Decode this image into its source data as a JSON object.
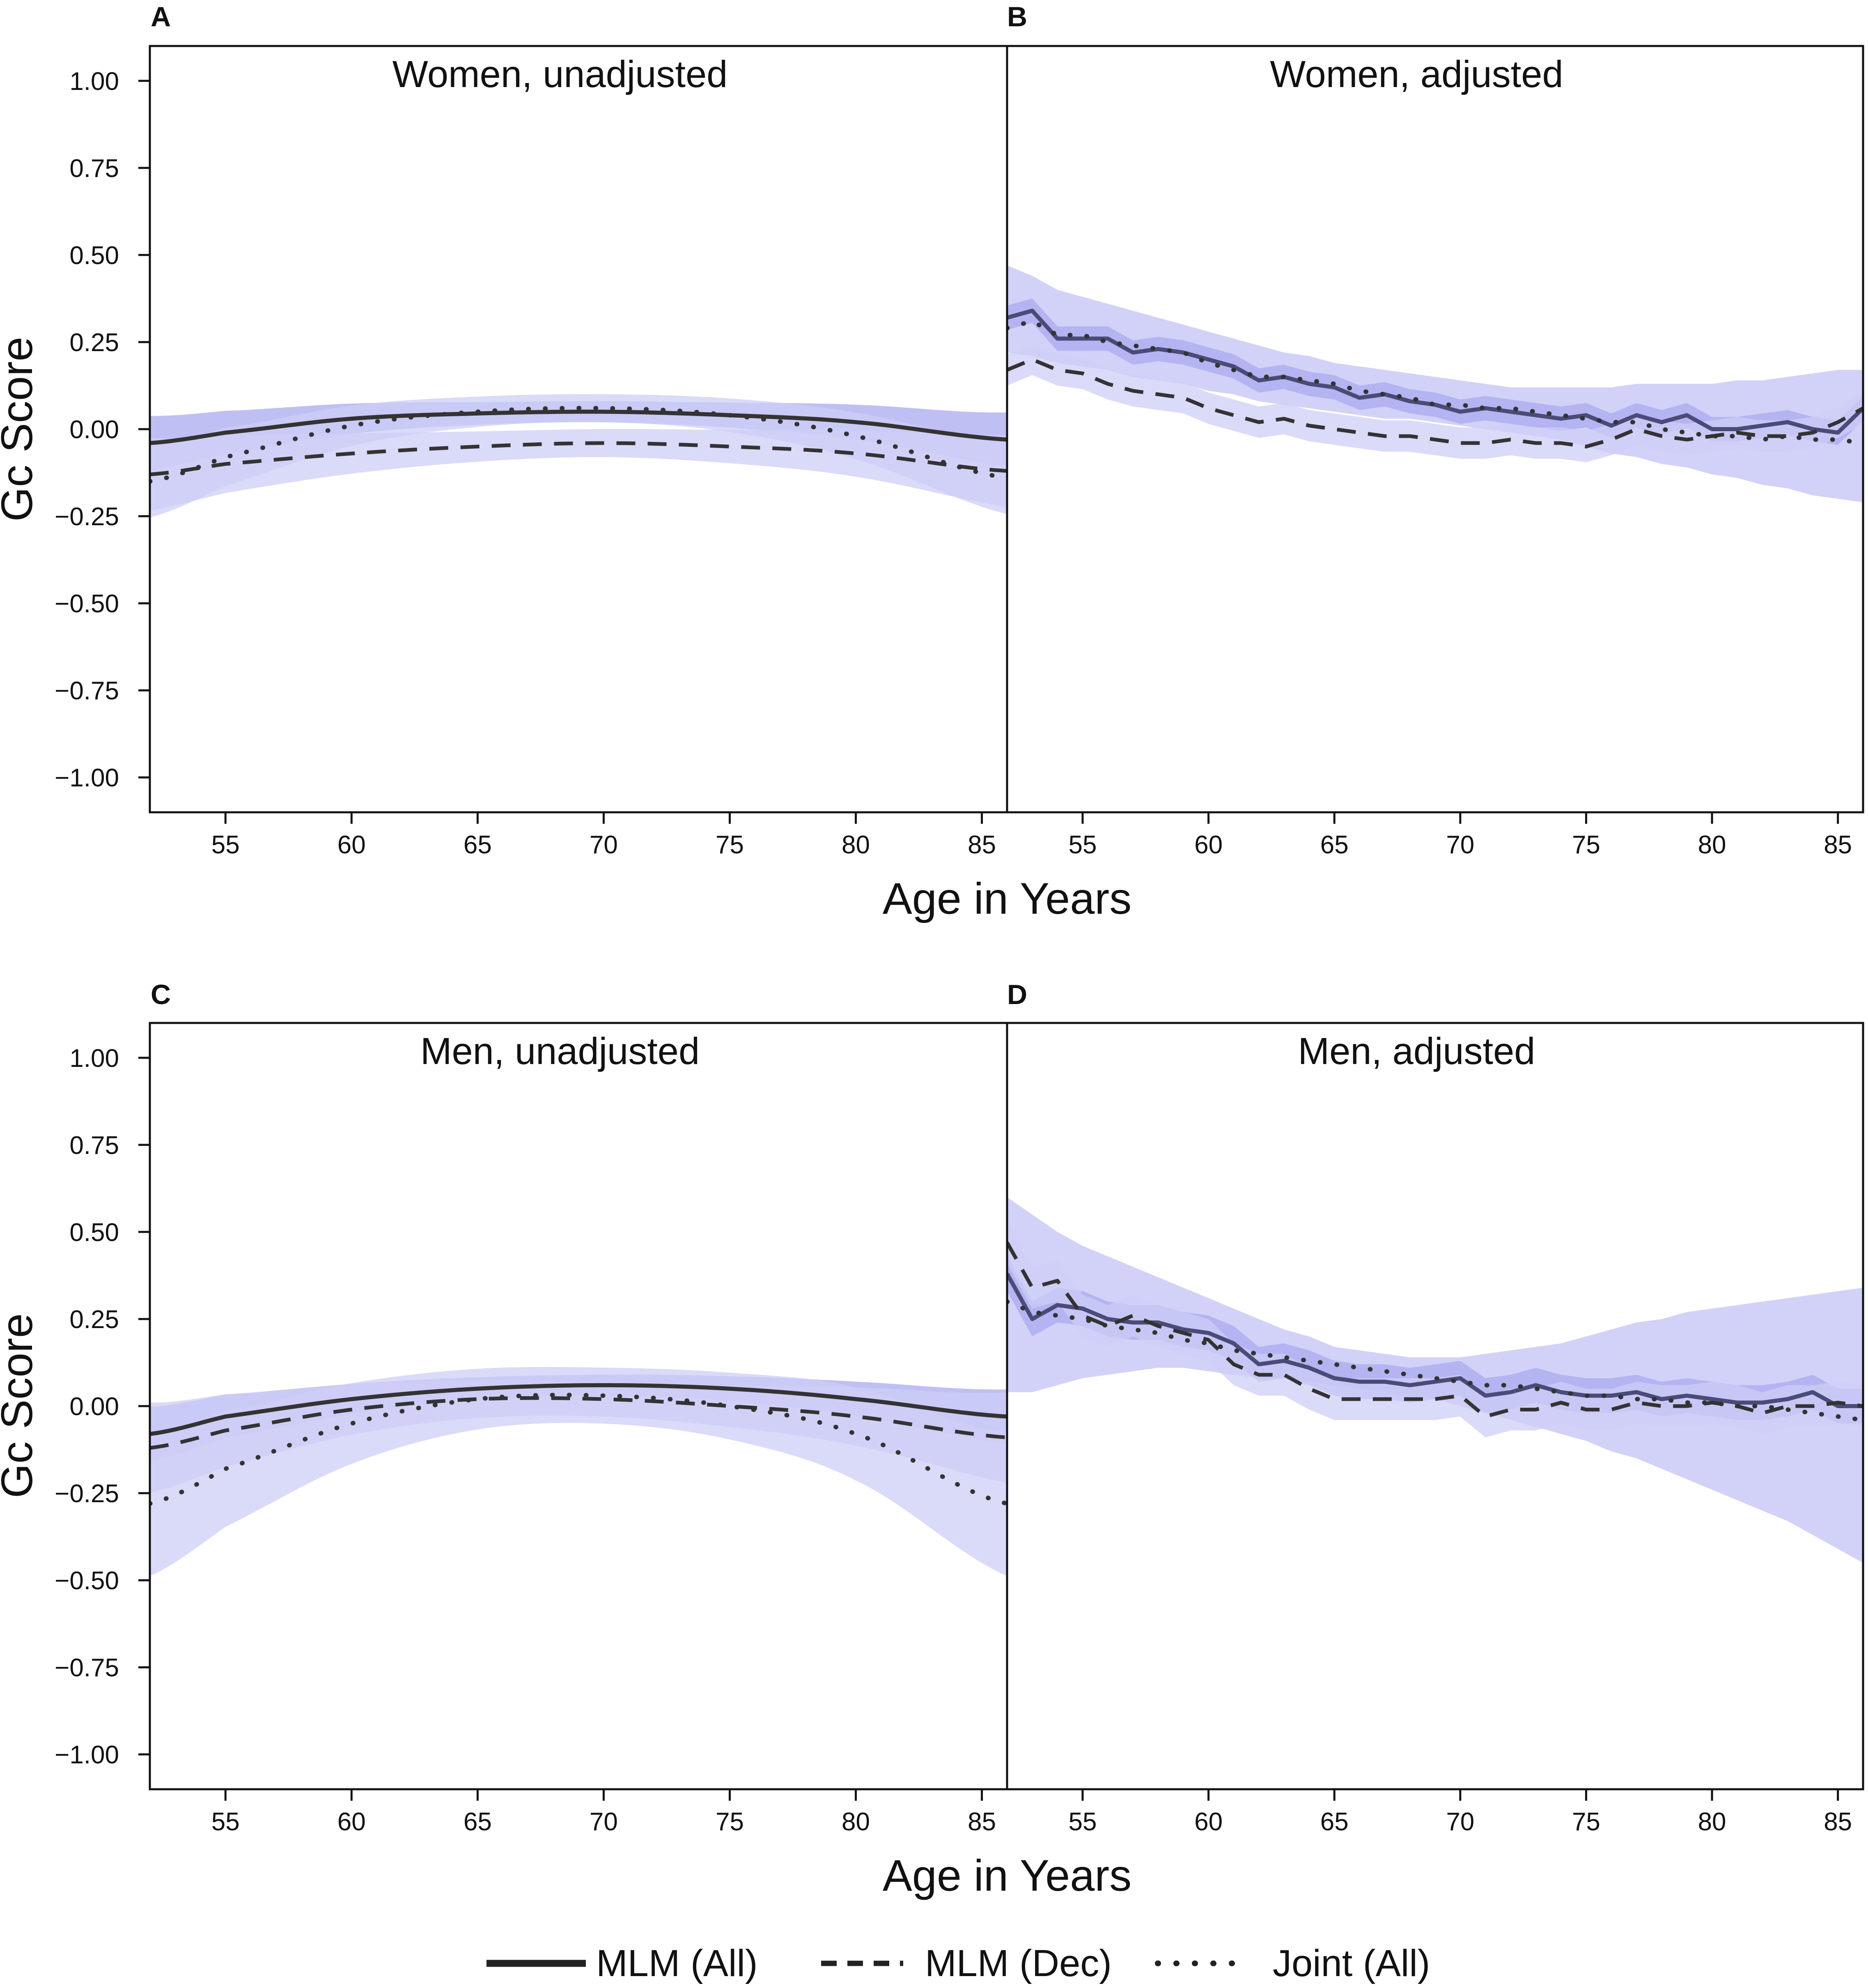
{
  "figure": {
    "ylabel": "Gc  Score",
    "xlabel": "Age in Years"
  },
  "colors": {
    "band_outer": "#cdcdf7",
    "band_inner": "#a9a9f0",
    "line": "#333333",
    "line_adjusted": "#4b4b78"
  },
  "legend": {
    "items": [
      {
        "label": "MLM (All)",
        "style": "solid"
      },
      {
        "label": "MLM (Dec)",
        "style": "dashed"
      },
      {
        "label": "Joint (All)",
        "style": "dotted"
      }
    ]
  },
  "chart_data": [
    {
      "panel": "A",
      "title": "Women, unadjusted",
      "type": "line",
      "xlim": [
        52,
        86
      ],
      "ylim": [
        -1.1,
        1.1
      ],
      "x_ticks": [
        55,
        60,
        65,
        70,
        75,
        80,
        85
      ],
      "y_ticks": [
        "1.00",
        "0.75",
        "0.50",
        "0.25",
        "0.00",
        "−0.25",
        "−0.50",
        "−0.75",
        "−1.00"
      ],
      "x": [
        52,
        55,
        60,
        65,
        70,
        75,
        80,
        86
      ],
      "series": [
        {
          "name": "MLM (All)",
          "style": "solid",
          "values": [
            -0.04,
            -0.01,
            0.03,
            0.045,
            0.05,
            0.04,
            0.02,
            -0.03
          ],
          "ci_half": 0.03
        },
        {
          "name": "MLM (Dec)",
          "style": "dashed",
          "values": [
            -0.13,
            -0.1,
            -0.07,
            -0.05,
            -0.04,
            -0.05,
            -0.07,
            -0.12
          ],
          "ci_half": 0.04
        },
        {
          "name": "Joint (All)",
          "style": "dotted",
          "values": [
            -0.15,
            -0.08,
            0.01,
            0.05,
            0.06,
            0.04,
            -0.02,
            -0.14
          ],
          "ci_half": 0.04
        }
      ]
    },
    {
      "panel": "B",
      "title": "Women, adjusted",
      "type": "line",
      "xlim": [
        52,
        86
      ],
      "ylim": [
        -1.1,
        1.1
      ],
      "x_ticks": [
        55,
        60,
        65,
        70,
        75,
        80,
        85
      ],
      "x": [
        52,
        53,
        54,
        55,
        56,
        57,
        58,
        59,
        60,
        61,
        62,
        63,
        64,
        65,
        66,
        67,
        68,
        69,
        70,
        71,
        72,
        73,
        74,
        75,
        76,
        77,
        78,
        79,
        80,
        81,
        82,
        83,
        84,
        85,
        86
      ],
      "series": [
        {
          "name": "MLM (All)",
          "style": "solid",
          "ci_low_outer": [
            0.22,
            0.21,
            0.19,
            0.18,
            0.17,
            0.15,
            0.14,
            0.13,
            0.11,
            0.1,
            0.08,
            0.07,
            0.06,
            0.05,
            0.04,
            0.03,
            0.03,
            0.02,
            0.01,
            0.0,
            -0.01,
            -0.02,
            -0.03,
            -0.05,
            -0.07,
            -0.08,
            -0.1,
            -0.11,
            -0.13,
            -0.14,
            -0.16,
            -0.17,
            -0.19,
            -0.2,
            -0.21
          ],
          "ci_high_outer": [
            0.47,
            0.44,
            0.4,
            0.38,
            0.36,
            0.34,
            0.32,
            0.3,
            0.28,
            0.26,
            0.24,
            0.22,
            0.21,
            0.19,
            0.18,
            0.17,
            0.16,
            0.15,
            0.14,
            0.13,
            0.12,
            0.12,
            0.12,
            0.12,
            0.12,
            0.13,
            0.13,
            0.13,
            0.13,
            0.14,
            0.14,
            0.15,
            0.16,
            0.17,
            0.17
          ],
          "values": [
            0.32,
            0.34,
            0.26,
            0.26,
            0.26,
            0.22,
            0.23,
            0.22,
            0.2,
            0.18,
            0.14,
            0.15,
            0.13,
            0.12,
            0.09,
            0.1,
            0.08,
            0.07,
            0.05,
            0.06,
            0.05,
            0.04,
            0.03,
            0.04,
            0.01,
            0.04,
            0.02,
            0.04,
            0.0,
            0.0,
            0.01,
            0.02,
            0.0,
            -0.01,
            0.06
          ],
          "ci_half": 0.035
        },
        {
          "name": "MLM (Dec)",
          "style": "dashed",
          "values": [
            0.17,
            0.2,
            0.17,
            0.16,
            0.13,
            0.11,
            0.1,
            0.09,
            0.06,
            0.04,
            0.02,
            0.03,
            0.01,
            0.0,
            -0.01,
            -0.02,
            -0.02,
            -0.03,
            -0.04,
            -0.04,
            -0.03,
            -0.04,
            -0.04,
            -0.05,
            -0.03,
            0.0,
            -0.02,
            -0.03,
            -0.02,
            -0.01,
            -0.02,
            -0.02,
            -0.01,
            0.02,
            0.06
          ],
          "ci_half": 0.045
        },
        {
          "name": "Joint (All)",
          "style": "dotted",
          "values": [
            0.29,
            0.31,
            0.27,
            0.27,
            0.25,
            0.24,
            0.23,
            0.22,
            0.19,
            0.17,
            0.15,
            0.15,
            0.14,
            0.13,
            0.11,
            0.1,
            0.09,
            0.07,
            0.07,
            0.06,
            0.06,
            0.05,
            0.04,
            0.03,
            0.02,
            0.02,
            0.0,
            -0.01,
            -0.02,
            -0.02,
            -0.03,
            -0.02,
            -0.03,
            -0.03,
            -0.04
          ]
        }
      ]
    },
    {
      "panel": "C",
      "title": "Men, unadjusted",
      "type": "line",
      "xlim": [
        52,
        86
      ],
      "ylim": [
        -1.1,
        1.1
      ],
      "x_ticks": [
        55,
        60,
        65,
        70,
        75,
        80,
        85
      ],
      "y_ticks": [
        "1.00",
        "0.75",
        "0.50",
        "0.25",
        "0.00",
        "−0.25",
        "−0.50",
        "−0.75",
        "−1.00"
      ],
      "x": [
        52,
        55,
        60,
        65,
        70,
        75,
        80,
        86
      ],
      "series": [
        {
          "name": "MLM (All)",
          "style": "solid",
          "values": [
            -0.08,
            -0.03,
            0.02,
            0.05,
            0.06,
            0.05,
            0.02,
            -0.03
          ],
          "ci_half": 0.03
        },
        {
          "name": "MLM (Dec)",
          "style": "dashed",
          "values": [
            -0.12,
            -0.07,
            -0.01,
            0.02,
            0.02,
            0.0,
            -0.03,
            -0.09
          ],
          "ci_half": 0.05
        },
        {
          "name": "Joint (All)",
          "style": "dotted",
          "values": [
            -0.28,
            -0.18,
            -0.05,
            0.02,
            0.03,
            0.0,
            -0.08,
            -0.28
          ],
          "ci_half": 0.08
        }
      ]
    },
    {
      "panel": "D",
      "title": "Men, adjusted",
      "type": "line",
      "xlim": [
        52,
        86
      ],
      "ylim": [
        -1.1,
        1.1
      ],
      "x_ticks": [
        55,
        60,
        65,
        70,
        75,
        80,
        85
      ],
      "x": [
        52,
        53,
        54,
        55,
        56,
        57,
        58,
        59,
        60,
        61,
        62,
        63,
        64,
        65,
        66,
        67,
        68,
        69,
        70,
        71,
        72,
        73,
        74,
        75,
        76,
        77,
        78,
        79,
        80,
        81,
        82,
        83,
        84,
        85,
        86
      ],
      "series": [
        {
          "name": "MLM (All)",
          "style": "solid",
          "ci_low_outer": [
            0.04,
            0.04,
            0.06,
            0.08,
            0.09,
            0.1,
            0.11,
            0.11,
            0.1,
            0.09,
            0.08,
            0.08,
            0.07,
            0.06,
            0.05,
            0.04,
            0.03,
            0.02,
            0.0,
            -0.02,
            -0.04,
            -0.06,
            -0.08,
            -0.1,
            -0.13,
            -0.15,
            -0.18,
            -0.21,
            -0.24,
            -0.27,
            -0.3,
            -0.33,
            -0.37,
            -0.41,
            -0.45
          ],
          "ci_high_outer": [
            0.6,
            0.55,
            0.5,
            0.46,
            0.43,
            0.4,
            0.37,
            0.34,
            0.31,
            0.28,
            0.25,
            0.22,
            0.2,
            0.17,
            0.16,
            0.15,
            0.14,
            0.14,
            0.14,
            0.15,
            0.16,
            0.17,
            0.18,
            0.2,
            0.22,
            0.24,
            0.25,
            0.27,
            0.28,
            0.29,
            0.3,
            0.31,
            0.32,
            0.33,
            0.34
          ],
          "values": [
            0.38,
            0.25,
            0.29,
            0.28,
            0.25,
            0.24,
            0.24,
            0.22,
            0.21,
            0.18,
            0.12,
            0.13,
            0.11,
            0.08,
            0.07,
            0.07,
            0.06,
            0.07,
            0.08,
            0.03,
            0.04,
            0.06,
            0.04,
            0.03,
            0.03,
            0.04,
            0.02,
            0.03,
            0.02,
            0.01,
            0.01,
            0.02,
            0.04,
            0.0,
            0.0
          ],
          "ci_half": 0.05
        },
        {
          "name": "MLM (Dec)",
          "style": "dashed",
          "values": [
            0.47,
            0.34,
            0.36,
            0.26,
            0.23,
            0.26,
            0.23,
            0.21,
            0.19,
            0.12,
            0.09,
            0.09,
            0.05,
            0.02,
            0.02,
            0.02,
            0.02,
            0.02,
            0.03,
            -0.03,
            -0.01,
            -0.01,
            0.01,
            -0.01,
            -0.01,
            0.01,
            0.0,
            0.0,
            0.01,
            0.0,
            -0.02,
            0.0,
            0.0,
            0.01,
            0.0
          ],
          "ci_half": 0.06
        },
        {
          "name": "Joint (All)",
          "style": "dotted",
          "values": [
            0.3,
            0.27,
            0.26,
            0.25,
            0.23,
            0.22,
            0.21,
            0.19,
            0.18,
            0.16,
            0.15,
            0.14,
            0.13,
            0.12,
            0.11,
            0.1,
            0.09,
            0.08,
            0.07,
            0.06,
            0.06,
            0.05,
            0.04,
            0.03,
            0.03,
            0.02,
            0.02,
            0.01,
            0.01,
            0.0,
            0.0,
            -0.01,
            -0.02,
            -0.03,
            -0.04
          ]
        }
      ]
    }
  ]
}
